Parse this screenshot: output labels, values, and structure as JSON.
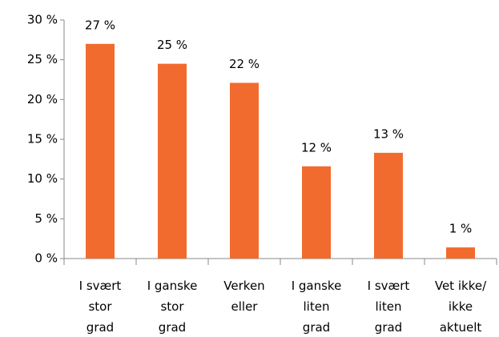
{
  "chart_data": {
    "type": "bar",
    "categories": [
      "I svært\nstor\ngrad",
      "I ganske\nstor\ngrad",
      "Verken\neller",
      "I ganske\nliten\ngrad",
      "I svært\nliten\ngrad",
      "Vet ikke/\nikke\naktuelt"
    ],
    "values": [
      27,
      24.5,
      22.1,
      11.6,
      13.3,
      1.4
    ],
    "value_labels": [
      "27 %",
      "25 %",
      "22 %",
      "12 %",
      "13 %",
      "1 %"
    ],
    "color": "#f26b2e",
    "ylim": [
      0,
      30
    ],
    "yticks": [
      {
        "value": 0,
        "label": "0 %"
      },
      {
        "value": 5,
        "label": "5 %"
      },
      {
        "value": 10,
        "label": "10 %"
      },
      {
        "value": 15,
        "label": "15 %"
      },
      {
        "value": 20,
        "label": "20 %"
      },
      {
        "value": 25,
        "label": "25 %"
      },
      {
        "value": 30,
        "label": "30 %"
      }
    ],
    "grid": false
  }
}
